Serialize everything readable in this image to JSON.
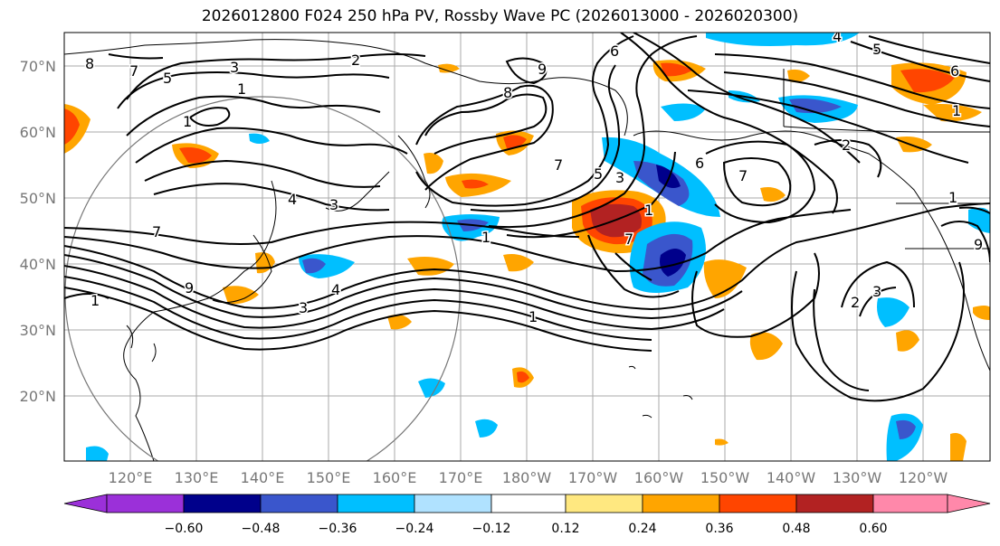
{
  "title": "2026012800 F024 250 hPa PV, Rossby Wave PC (2026013000 - 2026020300)",
  "map": {
    "lat_labels": [
      "70°N",
      "60°N",
      "50°N",
      "40°N",
      "30°N",
      "20°N"
    ],
    "lon_labels": [
      "120°E",
      "130°E",
      "140°E",
      "150°E",
      "160°E",
      "170°E",
      "180°W",
      "170°W",
      "160°W",
      "150°W",
      "140°W",
      "130°W",
      "120°W"
    ],
    "contour_labels": [
      "8",
      "7",
      "5",
      "3",
      "2",
      "1",
      "1",
      "9",
      "6",
      "4",
      "5",
      "6",
      "8",
      "1",
      "7",
      "5",
      "3",
      "3",
      "4",
      "7",
      "9",
      "1",
      "1",
      "4",
      "3",
      "1",
      "7",
      "1",
      "2",
      "3",
      "2",
      "1",
      "7",
      "9",
      "6"
    ]
  },
  "colorbar": {
    "ticks": [
      "−0.60",
      "−0.48",
      "−0.36",
      "−0.24",
      "−0.12",
      "0.12",
      "0.24",
      "0.36",
      "0.48",
      "0.60"
    ],
    "colors": [
      "#9b30d9",
      "#00008b",
      "#3a56cc",
      "#00bfff",
      "#b0e2ff",
      "#ffffff",
      "#ffe880",
      "#ffa500",
      "#ff4500",
      "#b22222",
      "#ff88aa"
    ]
  }
}
